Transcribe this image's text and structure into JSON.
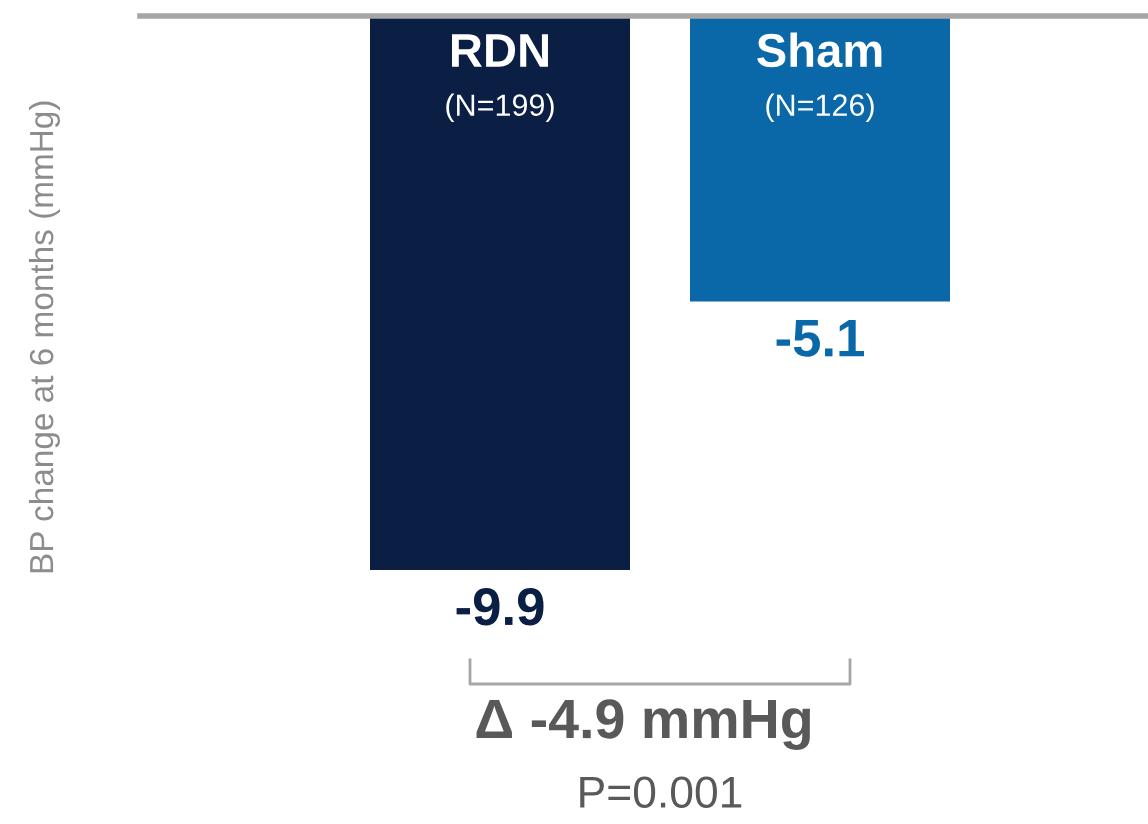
{
  "chart_data": {
    "type": "bar",
    "ylabel": "BP change at 6 months (mmHg)",
    "categories": [
      "RDN\n(N=199)",
      "Sham\n(N=126)"
    ],
    "values": [
      -9.9,
      -5.1
    ],
    "colors": [
      "#0b1f45",
      "#0b68a8"
    ],
    "data_labels": true,
    "annotations": [
      "Δ -4.9 mmHg",
      "P=0.001"
    ]
  }
}
